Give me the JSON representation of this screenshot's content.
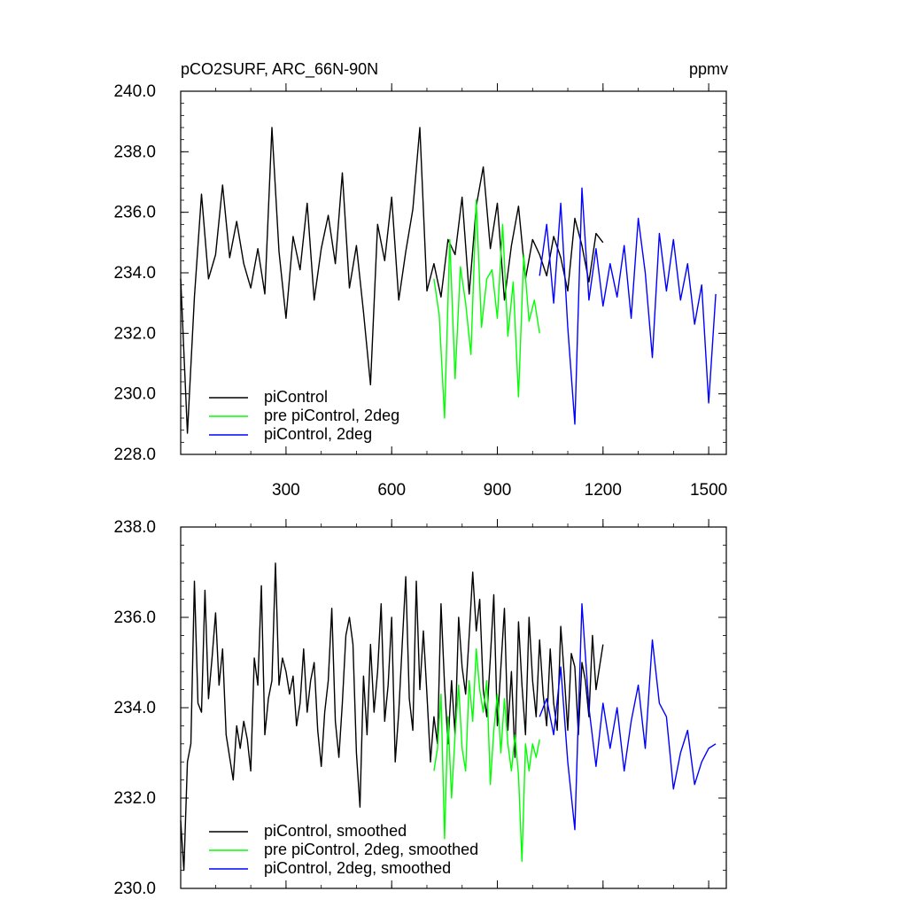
{
  "chart_data": [
    {
      "type": "line",
      "title_left": "pCO2SURF, ARC_66N-90N",
      "title_right": "ppmv",
      "xlim": [
        1,
        1550
      ],
      "ylim": [
        228,
        240
      ],
      "xticks": [
        300,
        600,
        900,
        1200,
        1500
      ],
      "xtick_labels": [
        "300",
        "600",
        "900",
        "1200",
        "1500"
      ],
      "yticks": [
        228,
        230,
        232,
        234,
        236,
        238,
        240
      ],
      "ytick_labels": [
        "228.0",
        "230.0",
        "232.0",
        "234.0",
        "236.0",
        "238.0",
        "240.0"
      ],
      "legend_position": "bottom-left",
      "series": [
        {
          "name": "piControl",
          "color": "#000000",
          "x": [
            1,
            20,
            40,
            60,
            80,
            100,
            120,
            140,
            160,
            180,
            200,
            220,
            240,
            260,
            280,
            300,
            320,
            340,
            360,
            380,
            400,
            420,
            440,
            460,
            480,
            500,
            520,
            540,
            560,
            580,
            600,
            620,
            640,
            660,
            680,
            700,
            720,
            740,
            760,
            780,
            800,
            820,
            840,
            860,
            880,
            900,
            920,
            940,
            960,
            980,
            1000,
            1020,
            1040,
            1060,
            1080,
            1100,
            1120,
            1140,
            1160,
            1180,
            1200
          ],
          "values": [
            233.8,
            228.7,
            233.2,
            236.6,
            233.8,
            234.6,
            236.9,
            234.5,
            235.7,
            234.3,
            233.5,
            234.8,
            233.3,
            238.8,
            234.7,
            232.5,
            235.2,
            234.1,
            236.3,
            233.1,
            234.8,
            235.9,
            234.3,
            237.3,
            233.5,
            234.9,
            232.7,
            230.3,
            235.6,
            234.4,
            236.5,
            233.1,
            234.7,
            236.1,
            238.8,
            233.4,
            234.3,
            233.2,
            235.1,
            234.6,
            236.5,
            233.3,
            236.2,
            237.5,
            234.8,
            236.3,
            233.1,
            234.9,
            236.2,
            233.8,
            235.1,
            234.6,
            233.9,
            235.2,
            234.5,
            233.4,
            235.8,
            234.9,
            233.7,
            235.3,
            235.0
          ]
        },
        {
          "name": "pre piControl, 2deg",
          "color": "#00ff00",
          "x": [
            720,
            735,
            750,
            765,
            780,
            795,
            810,
            825,
            840,
            855,
            870,
            885,
            900,
            915,
            930,
            945,
            960,
            975,
            990,
            1005,
            1020
          ],
          "values": [
            233.8,
            232.6,
            229.2,
            235.1,
            230.5,
            234.2,
            233.0,
            231.3,
            236.4,
            232.2,
            233.8,
            234.1,
            232.5,
            235.6,
            231.9,
            233.7,
            229.9,
            234.6,
            232.4,
            233.1,
            232.0
          ]
        },
        {
          "name": "piControl, 2deg",
          "color": "#0000ff",
          "x": [
            1020,
            1040,
            1060,
            1080,
            1100,
            1120,
            1140,
            1160,
            1180,
            1200,
            1220,
            1240,
            1260,
            1280,
            1300,
            1320,
            1340,
            1360,
            1380,
            1400,
            1420,
            1440,
            1460,
            1480,
            1500,
            1520
          ],
          "values": [
            233.9,
            235.6,
            233.0,
            236.3,
            232.2,
            229.0,
            236.8,
            233.1,
            234.8,
            232.9,
            234.3,
            233.2,
            234.9,
            232.5,
            235.8,
            234.0,
            231.2,
            235.3,
            233.4,
            235.1,
            233.1,
            234.3,
            232.3,
            233.6,
            229.7,
            233.3
          ]
        }
      ],
      "legend": [
        "piControl",
        "pre piControl, 2deg",
        "piControl, 2deg"
      ]
    },
    {
      "type": "line",
      "xlim": [
        1,
        1550
      ],
      "ylim": [
        230,
        238
      ],
      "xticks": [
        300,
        600,
        900,
        1200,
        1500
      ],
      "yticks": [
        230,
        232,
        234,
        236,
        238
      ],
      "ytick_labels": [
        "230.0",
        "232.0",
        "234.0",
        "236.0",
        "238.0"
      ],
      "legend_position": "bottom-left",
      "series": [
        {
          "name": "piControl, smoothed",
          "color": "#000000",
          "x": [
            1,
            10,
            20,
            30,
            40,
            50,
            60,
            70,
            80,
            90,
            100,
            110,
            120,
            130,
            140,
            150,
            160,
            170,
            180,
            190,
            200,
            210,
            220,
            230,
            240,
            250,
            260,
            270,
            280,
            290,
            300,
            310,
            320,
            330,
            340,
            350,
            360,
            370,
            380,
            390,
            400,
            410,
            420,
            430,
            440,
            450,
            460,
            470,
            480,
            490,
            500,
            510,
            520,
            530,
            540,
            550,
            560,
            570,
            580,
            590,
            600,
            610,
            620,
            630,
            640,
            650,
            660,
            670,
            680,
            690,
            700,
            710,
            720,
            730,
            740,
            750,
            760,
            770,
            780,
            790,
            800,
            810,
            820,
            830,
            840,
            850,
            860,
            870,
            880,
            890,
            900,
            910,
            920,
            930,
            940,
            950,
            960,
            970,
            980,
            990,
            1000,
            1010,
            1020,
            1030,
            1040,
            1050,
            1060,
            1070,
            1080,
            1090,
            1100,
            1110,
            1120,
            1130,
            1140,
            1150,
            1160,
            1170,
            1180,
            1200
          ],
          "values": [
            231.5,
            230.4,
            232.8,
            233.2,
            236.8,
            234.1,
            233.9,
            236.6,
            234.2,
            235.1,
            236.1,
            234.5,
            235.3,
            233.4,
            232.9,
            232.4,
            233.6,
            233.1,
            233.7,
            233.3,
            232.6,
            235.1,
            234.5,
            236.7,
            233.4,
            234.2,
            234.6,
            237.2,
            234.5,
            235.1,
            234.8,
            234.3,
            234.7,
            233.6,
            234.1,
            235.3,
            233.9,
            234.6,
            235.0,
            233.5,
            232.7,
            233.9,
            234.6,
            236.2,
            233.7,
            232.9,
            234.1,
            235.6,
            236.0,
            235.4,
            233.0,
            231.8,
            234.7,
            233.4,
            235.4,
            233.9,
            234.8,
            236.3,
            233.7,
            234.5,
            236.0,
            232.8,
            233.9,
            235.4,
            236.9,
            234.2,
            233.5,
            236.8,
            234.4,
            235.7,
            234.3,
            232.8,
            233.8,
            233.2,
            236.3,
            234.5,
            233.2,
            234.6,
            233.4,
            236.0,
            234.9,
            234.3,
            235.6,
            237.0,
            235.7,
            236.4,
            234.4,
            233.8,
            235.1,
            236.5,
            233.6,
            234.9,
            236.2,
            233.5,
            234.8,
            232.9,
            235.9,
            234.5,
            233.4,
            236.0,
            234.6,
            233.8,
            235.5,
            234.3,
            233.6,
            235.3,
            234.1,
            233.5,
            235.8,
            234.7,
            233.5,
            235.2,
            234.9,
            233.4,
            235.0,
            234.6,
            233.8,
            235.6,
            234.4,
            235.4
          ]
        },
        {
          "name": "pre piControl, 2deg, smoothed",
          "color": "#00ff00",
          "x": [
            720,
            730,
            740,
            750,
            760,
            770,
            780,
            790,
            800,
            810,
            820,
            830,
            840,
            850,
            860,
            870,
            880,
            890,
            900,
            910,
            920,
            930,
            940,
            950,
            960,
            970,
            980,
            990,
            1000,
            1010,
            1020
          ],
          "values": [
            232.6,
            233.1,
            234.3,
            231.1,
            233.8,
            232.0,
            233.4,
            234.5,
            233.1,
            232.6,
            234.6,
            233.7,
            235.3,
            234.4,
            233.9,
            234.6,
            232.3,
            233.5,
            234.3,
            233.0,
            234.2,
            233.2,
            232.6,
            233.4,
            232.5,
            230.6,
            233.2,
            232.6,
            233.2,
            232.9,
            233.3
          ]
        },
        {
          "name": "piControl, 2deg, smoothed",
          "color": "#0000ff",
          "x": [
            1020,
            1040,
            1060,
            1080,
            1100,
            1120,
            1140,
            1160,
            1180,
            1200,
            1220,
            1240,
            1260,
            1280,
            1300,
            1320,
            1340,
            1360,
            1380,
            1400,
            1420,
            1440,
            1460,
            1480,
            1500,
            1520
          ],
          "values": [
            233.8,
            234.2,
            233.4,
            234.9,
            232.8,
            231.3,
            236.3,
            234.0,
            232.7,
            234.1,
            233.1,
            234.0,
            232.6,
            233.7,
            234.5,
            233.1,
            235.5,
            234.1,
            233.8,
            232.2,
            233.0,
            233.5,
            232.3,
            232.8,
            233.1,
            233.2
          ]
        }
      ],
      "legend": [
        "piControl, smoothed",
        "pre piControl, 2deg, smoothed",
        "piControl, 2deg, smoothed"
      ]
    }
  ]
}
